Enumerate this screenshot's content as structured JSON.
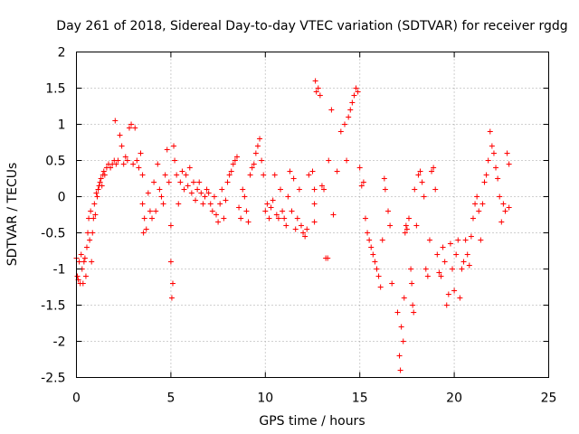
{
  "chart_data": {
    "type": "scatter",
    "title": "Day 261 of 2018, Sidereal Day-to-day VTEC variation (SDTVAR) for receiver rgdg",
    "xlabel": "GPS time / hours",
    "ylabel": "SDTVAR / TECUs",
    "xlim": [
      0,
      25
    ],
    "ylim": [
      -2.5,
      2
    ],
    "xticks": [
      "0",
      "5",
      "10",
      "15",
      "20",
      "25"
    ],
    "yticks": [
      "2",
      "1.5",
      "1",
      "0.5",
      "0",
      "-0.5",
      "-1",
      "-1.5",
      "-2",
      "-2.5"
    ],
    "grid": true,
    "marker": "+",
    "color": "#ff0000",
    "series": [
      {
        "name": "SDTVAR",
        "points": [
          [
            0.0,
            -0.85
          ],
          [
            0.05,
            -1.1
          ],
          [
            0.1,
            -1.15
          ],
          [
            0.15,
            -0.9
          ],
          [
            0.2,
            -1.2
          ],
          [
            0.25,
            -0.8
          ],
          [
            0.3,
            -1.0
          ],
          [
            0.35,
            -1.2
          ],
          [
            0.4,
            -0.9
          ],
          [
            0.45,
            -0.85
          ],
          [
            0.5,
            -1.1
          ],
          [
            0.55,
            -0.7
          ],
          [
            0.6,
            -0.5
          ],
          [
            0.65,
            -0.3
          ],
          [
            0.7,
            -0.6
          ],
          [
            0.75,
            -0.2
          ],
          [
            0.8,
            -0.9
          ],
          [
            0.85,
            -0.5
          ],
          [
            0.9,
            -0.3
          ],
          [
            0.95,
            -0.1
          ],
          [
            1.0,
            -0.25
          ],
          [
            1.05,
            0.05
          ],
          [
            1.1,
            0.0
          ],
          [
            1.15,
            0.1
          ],
          [
            1.2,
            0.15
          ],
          [
            1.25,
            0.2
          ],
          [
            1.3,
            0.25
          ],
          [
            1.35,
            0.15
          ],
          [
            1.4,
            0.3
          ],
          [
            1.45,
            0.35
          ],
          [
            1.5,
            0.3
          ],
          [
            1.6,
            0.4
          ],
          [
            1.7,
            0.45
          ],
          [
            1.8,
            0.4
          ],
          [
            1.9,
            0.45
          ],
          [
            2.0,
            0.5
          ],
          [
            2.05,
            1.05
          ],
          [
            2.1,
            0.45
          ],
          [
            2.2,
            0.5
          ],
          [
            2.3,
            0.85
          ],
          [
            2.4,
            0.7
          ],
          [
            2.5,
            0.45
          ],
          [
            2.6,
            0.55
          ],
          [
            2.7,
            0.5
          ],
          [
            2.8,
            0.95
          ],
          [
            2.9,
            1.0
          ],
          [
            3.0,
            0.45
          ],
          [
            3.1,
            0.95
          ],
          [
            3.2,
            0.5
          ],
          [
            3.3,
            0.4
          ],
          [
            3.4,
            0.6
          ],
          [
            3.5,
            0.3
          ],
          [
            3.5,
            -0.1
          ],
          [
            3.55,
            -0.5
          ],
          [
            3.6,
            -0.3
          ],
          [
            3.7,
            -0.45
          ],
          [
            3.8,
            0.05
          ],
          [
            3.9,
            -0.2
          ],
          [
            4.0,
            -0.3
          ],
          [
            4.1,
            0.2
          ],
          [
            4.2,
            -0.2
          ],
          [
            4.3,
            0.45
          ],
          [
            4.4,
            0.1
          ],
          [
            4.5,
            0.0
          ],
          [
            4.6,
            -0.1
          ],
          [
            4.7,
            0.3
          ],
          [
            4.8,
            0.65
          ],
          [
            4.9,
            0.2
          ],
          [
            5.0,
            -0.4
          ],
          [
            5.0,
            -0.9
          ],
          [
            5.05,
            -1.4
          ],
          [
            5.1,
            -1.2
          ],
          [
            5.15,
            0.7
          ],
          [
            5.2,
            0.5
          ],
          [
            5.3,
            0.3
          ],
          [
            5.4,
            -0.1
          ],
          [
            5.5,
            0.2
          ],
          [
            5.6,
            0.35
          ],
          [
            5.7,
            0.1
          ],
          [
            5.8,
            0.3
          ],
          [
            5.9,
            0.15
          ],
          [
            6.0,
            0.4
          ],
          [
            6.1,
            0.05
          ],
          [
            6.2,
            0.2
          ],
          [
            6.3,
            -0.05
          ],
          [
            6.4,
            0.1
          ],
          [
            6.5,
            0.2
          ],
          [
            6.6,
            0.05
          ],
          [
            6.7,
            -0.1
          ],
          [
            6.8,
            0.0
          ],
          [
            6.9,
            0.1
          ],
          [
            7.0,
            0.05
          ],
          [
            7.1,
            -0.1
          ],
          [
            7.2,
            -0.2
          ],
          [
            7.3,
            0.0
          ],
          [
            7.4,
            -0.25
          ],
          [
            7.5,
            -0.35
          ],
          [
            7.6,
            -0.1
          ],
          [
            7.7,
            0.1
          ],
          [
            7.8,
            -0.3
          ],
          [
            7.9,
            -0.05
          ],
          [
            8.0,
            0.2
          ],
          [
            8.1,
            0.3
          ],
          [
            8.2,
            0.35
          ],
          [
            8.3,
            0.45
          ],
          [
            8.4,
            0.5
          ],
          [
            8.5,
            0.55
          ],
          [
            8.6,
            -0.15
          ],
          [
            8.7,
            -0.3
          ],
          [
            8.8,
            0.1
          ],
          [
            8.9,
            0.0
          ],
          [
            9.0,
            -0.2
          ],
          [
            9.1,
            -0.35
          ],
          [
            9.2,
            0.3
          ],
          [
            9.3,
            0.4
          ],
          [
            9.4,
            0.45
          ],
          [
            9.5,
            0.6
          ],
          [
            9.6,
            0.7
          ],
          [
            9.7,
            0.8
          ],
          [
            9.8,
            0.5
          ],
          [
            9.9,
            0.3
          ],
          [
            10.0,
            -0.2
          ],
          [
            10.1,
            -0.1
          ],
          [
            10.2,
            -0.3
          ],
          [
            10.3,
            -0.15
          ],
          [
            10.4,
            -0.05
          ],
          [
            10.5,
            0.3
          ],
          [
            10.6,
            -0.25
          ],
          [
            10.7,
            -0.3
          ],
          [
            10.8,
            0.1
          ],
          [
            10.9,
            -0.2
          ],
          [
            11.0,
            -0.3
          ],
          [
            11.1,
            -0.4
          ],
          [
            11.2,
            0.0
          ],
          [
            11.3,
            0.35
          ],
          [
            11.4,
            -0.2
          ],
          [
            11.5,
            0.25
          ],
          [
            11.6,
            -0.45
          ],
          [
            11.7,
            -0.3
          ],
          [
            11.8,
            0.1
          ],
          [
            11.9,
            -0.4
          ],
          [
            12.0,
            -0.5
          ],
          [
            12.1,
            -0.55
          ],
          [
            12.2,
            -0.45
          ],
          [
            12.3,
            0.3
          ],
          [
            12.5,
            0.35
          ],
          [
            12.6,
            0.1
          ],
          [
            12.6,
            -0.1
          ],
          [
            12.6,
            -0.35
          ],
          [
            12.65,
            1.6
          ],
          [
            12.7,
            1.45
          ],
          [
            12.8,
            1.5
          ],
          [
            12.9,
            1.4
          ],
          [
            13.0,
            0.15
          ],
          [
            13.1,
            0.1
          ],
          [
            13.2,
            -0.85
          ],
          [
            13.3,
            -0.85
          ],
          [
            13.35,
            0.5
          ],
          [
            13.5,
            1.2
          ],
          [
            13.6,
            -0.25
          ],
          [
            13.8,
            0.35
          ],
          [
            14.0,
            0.9
          ],
          [
            14.2,
            1.0
          ],
          [
            14.3,
            0.5
          ],
          [
            14.4,
            1.1
          ],
          [
            14.5,
            1.2
          ],
          [
            14.6,
            1.3
          ],
          [
            14.7,
            1.4
          ],
          [
            14.8,
            1.5
          ],
          [
            14.9,
            1.45
          ],
          [
            15.0,
            0.4
          ],
          [
            15.1,
            0.15
          ],
          [
            15.2,
            0.2
          ],
          [
            15.3,
            -0.3
          ],
          [
            15.4,
            -0.5
          ],
          [
            15.5,
            -0.6
          ],
          [
            15.6,
            -0.7
          ],
          [
            15.7,
            -0.8
          ],
          [
            15.8,
            -0.9
          ],
          [
            15.9,
            -1.0
          ],
          [
            16.0,
            -1.1
          ],
          [
            16.1,
            -1.25
          ],
          [
            16.2,
            -0.6
          ],
          [
            16.3,
            0.25
          ],
          [
            16.35,
            0.1
          ],
          [
            16.5,
            -0.2
          ],
          [
            16.6,
            -0.4
          ],
          [
            16.7,
            -1.2
          ],
          [
            17.0,
            -1.6
          ],
          [
            17.1,
            -2.2
          ],
          [
            17.15,
            -2.4
          ],
          [
            17.2,
            -1.8
          ],
          [
            17.3,
            -2.0
          ],
          [
            17.35,
            -1.4
          ],
          [
            17.4,
            -0.5
          ],
          [
            17.45,
            -0.4
          ],
          [
            17.5,
            -0.45
          ],
          [
            17.6,
            -0.3
          ],
          [
            17.7,
            -1.0
          ],
          [
            17.75,
            -1.2
          ],
          [
            17.8,
            -1.5
          ],
          [
            17.85,
            -1.6
          ],
          [
            17.9,
            0.1
          ],
          [
            18.0,
            -0.4
          ],
          [
            18.1,
            0.3
          ],
          [
            18.2,
            0.35
          ],
          [
            18.3,
            0.2
          ],
          [
            18.4,
            0.0
          ],
          [
            18.5,
            -1.0
          ],
          [
            18.6,
            -1.1
          ],
          [
            18.7,
            -0.6
          ],
          [
            18.8,
            0.35
          ],
          [
            18.9,
            0.4
          ],
          [
            19.0,
            0.1
          ],
          [
            19.1,
            -0.8
          ],
          [
            19.2,
            -1.05
          ],
          [
            19.3,
            -1.1
          ],
          [
            19.4,
            -0.7
          ],
          [
            19.5,
            -0.9
          ],
          [
            19.6,
            -1.5
          ],
          [
            19.7,
            -1.35
          ],
          [
            19.8,
            -0.65
          ],
          [
            19.9,
            -1.0
          ],
          [
            20.0,
            -1.3
          ],
          [
            20.1,
            -0.8
          ],
          [
            20.2,
            -0.6
          ],
          [
            20.3,
            -1.4
          ],
          [
            20.4,
            -1.0
          ],
          [
            20.5,
            -0.9
          ],
          [
            20.6,
            -0.6
          ],
          [
            20.7,
            -0.8
          ],
          [
            20.8,
            -0.95
          ],
          [
            20.9,
            -0.55
          ],
          [
            21.0,
            -0.3
          ],
          [
            21.1,
            -0.1
          ],
          [
            21.2,
            0.0
          ],
          [
            21.3,
            -0.2
          ],
          [
            21.4,
            -0.6
          ],
          [
            21.5,
            -0.1
          ],
          [
            21.6,
            0.2
          ],
          [
            21.7,
            0.3
          ],
          [
            21.8,
            0.5
          ],
          [
            21.9,
            0.9
          ],
          [
            22.0,
            0.7
          ],
          [
            22.1,
            0.6
          ],
          [
            22.2,
            0.4
          ],
          [
            22.3,
            0.25
          ],
          [
            22.4,
            0.0
          ],
          [
            22.5,
            -0.35
          ],
          [
            22.6,
            -0.1
          ],
          [
            22.7,
            -0.2
          ],
          [
            22.8,
            0.6
          ],
          [
            22.9,
            0.45
          ],
          [
            22.9,
            -0.15
          ]
        ]
      }
    ]
  }
}
